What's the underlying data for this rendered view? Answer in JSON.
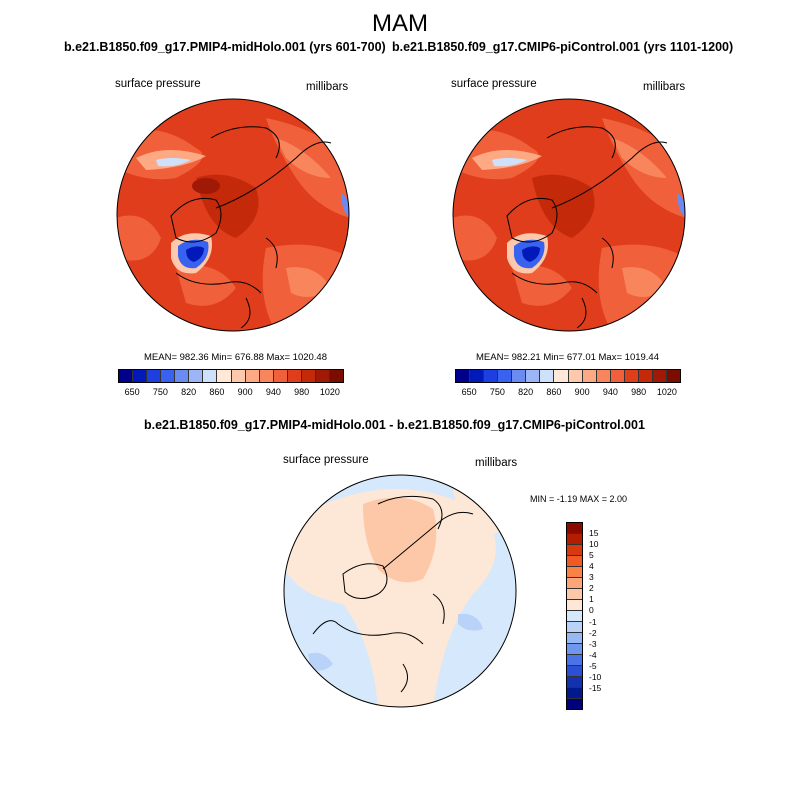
{
  "title": "MAM",
  "panels": [
    {
      "title": "b.e21.B1850.f09_g17.PMIP4-midHolo.001 (yrs 601-700)",
      "left_label": "surface pressure",
      "right_label": "millibars",
      "stats": "MEAN= 982.36  Min= 676.88  Max= 1020.48"
    },
    {
      "title": "b.e21.B1850.f09_g17.CMIP6-piControl.001 (yrs 1101-1200)",
      "left_label": "surface pressure",
      "right_label": "millibars",
      "stats": "MEAN= 982.21  Min= 677.01  Max= 1019.44"
    },
    {
      "title": "b.e21.B1850.f09_g17.PMIP4-midHolo.001 - b.e21.B1850.f09_g17.CMIP6-piControl.001",
      "left_label": "surface pressure",
      "right_label": "millibars",
      "stats": "MIN =  -1.19 MAX =   2.00"
    }
  ],
  "abs_colorbar": {
    "colors": [
      "#00008b",
      "#0019b8",
      "#1e3fe0",
      "#3a62f0",
      "#6a8cf2",
      "#9bb5f5",
      "#cfe0fa",
      "#ffe8d8",
      "#fdc8ab",
      "#fca984",
      "#f8855c",
      "#f0603a",
      "#e03d1c",
      "#c42a0a",
      "#a01806",
      "#7a0c00"
    ],
    "ticks": [
      "650",
      "750",
      "820",
      "860",
      "900",
      "940",
      "980",
      "1020"
    ]
  },
  "diff_colorbar": {
    "colors": [
      "#8b0a00",
      "#b31e03",
      "#d8390f",
      "#ef5a25",
      "#f98246",
      "#fca57a",
      "#fdc8a8",
      "#fde7d6",
      "#d6e8fb",
      "#b8d2f8",
      "#96b8f3",
      "#6f97ee",
      "#4a74e6",
      "#2c50d4",
      "#1431b0",
      "#001a8c",
      "#00007a"
    ],
    "ticks": [
      "15",
      "10",
      "5",
      "4",
      "3",
      "2",
      "1",
      "0",
      "-1",
      "-2",
      "-3",
      "-4",
      "-5",
      "-10",
      "-15"
    ]
  }
}
